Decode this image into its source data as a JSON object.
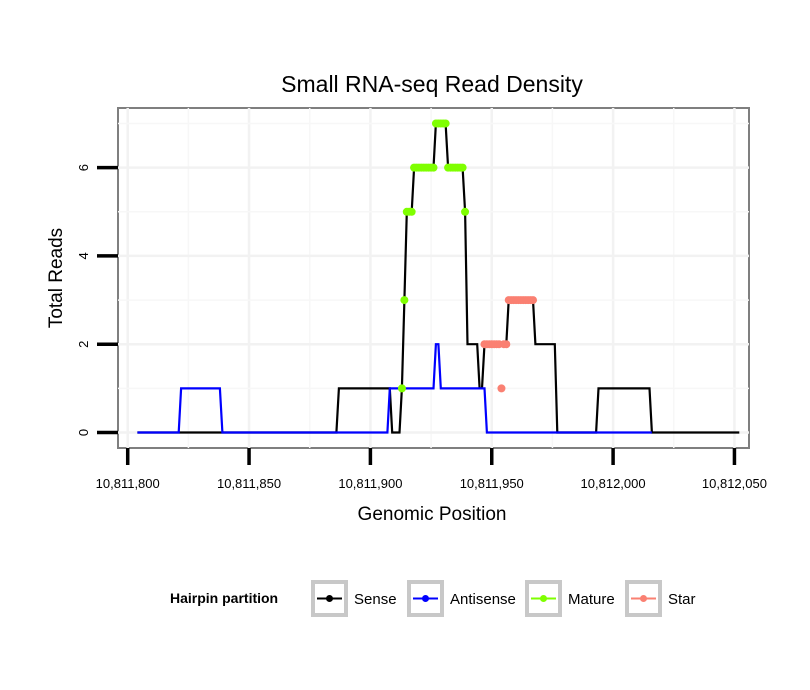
{
  "chart_data": {
    "type": "line",
    "title": "Small RNA-seq Read Density",
    "xlabel": "Genomic Position",
    "ylabel": "Total Reads",
    "xlim": [
      10811796,
      10812056
    ],
    "ylim": [
      -0.35,
      7.35
    ],
    "x_ticks": [
      10811800,
      10811850,
      10811900,
      10811950,
      10812000,
      10812050
    ],
    "x_tick_labels": [
      "10,811,800",
      "10,811,850",
      "10,811,900",
      "10,811,950",
      "10,812,000",
      "10,812,050"
    ],
    "y_ticks": [
      0,
      2,
      4,
      6
    ],
    "y_tick_labels": [
      "0",
      "2",
      "4",
      "6"
    ],
    "grid": true,
    "legend": {
      "title": "Hairpin partition",
      "position": "bottom",
      "entries": [
        {
          "label": "Sense",
          "color": "#000000"
        },
        {
          "label": "Antisense",
          "color": "#0000ff"
        },
        {
          "label": "Mature",
          "color": "#7fff00"
        },
        {
          "label": "Star",
          "color": "#fa8072"
        }
      ]
    },
    "series": [
      {
        "name": "Sense",
        "color": "#000000",
        "kind": "line",
        "x": [
          10811804,
          10811886,
          10811887,
          10811908,
          10811909,
          10811912,
          10811913,
          10811914,
          10811915,
          10811916,
          10811917,
          10811918,
          10811919,
          10811926,
          10811927,
          10811931,
          10811932,
          10811938,
          10811939,
          10811940,
          10811941,
          10811944,
          10811945,
          10811946,
          10811947,
          10811948,
          10811949,
          10811956,
          10811957,
          10811967,
          10811968,
          10811976,
          10811977,
          10811993,
          10811994,
          10812015,
          10812016,
          10812052
        ],
        "y": [
          0,
          0,
          1,
          1,
          0,
          0,
          1,
          3,
          5,
          5,
          5,
          6,
          6,
          6,
          7,
          7,
          6,
          6,
          5,
          2,
          2,
          2,
          1,
          1,
          2,
          2,
          2,
          2,
          3,
          3,
          2,
          2,
          0,
          0,
          1,
          1,
          0,
          0
        ]
      },
      {
        "name": "Antisense",
        "color": "#0000ff",
        "kind": "line",
        "x": [
          10811804,
          10811821,
          10811822,
          10811838,
          10811839,
          10811907,
          10811908,
          10811926,
          10811927,
          10811928,
          10811929,
          10811947,
          10811948,
          10812016
        ],
        "y": [
          0,
          0,
          1,
          1,
          0,
          0,
          1,
          1,
          2,
          2,
          1,
          1,
          0,
          0
        ]
      },
      {
        "name": "Mature",
        "color": "#7fff00",
        "kind": "points",
        "x": [
          10811913,
          10811914,
          10811915,
          10811916,
          10811917,
          10811918,
          10811919,
          10811920,
          10811921,
          10811922,
          10811923,
          10811924,
          10811925,
          10811926,
          10811927,
          10811928,
          10811929,
          10811930,
          10811931,
          10811932,
          10811933,
          10811934,
          10811935,
          10811936,
          10811937,
          10811938,
          10811939
        ],
        "y": [
          1,
          3,
          5,
          5,
          5,
          6,
          6,
          6,
          6,
          6,
          6,
          6,
          6,
          6,
          7,
          7,
          7,
          7,
          7,
          6,
          6,
          6,
          6,
          6,
          6,
          6,
          5
        ]
      },
      {
        "name": "Star",
        "color": "#fa8072",
        "kind": "points",
        "x": [
          10811947,
          10811948,
          10811949,
          10811950,
          10811951,
          10811952,
          10811953,
          10811954,
          10811955,
          10811956,
          10811957,
          10811958,
          10811959,
          10811960,
          10811961,
          10811962,
          10811963,
          10811964,
          10811965,
          10811966,
          10811967
        ],
        "y": [
          2,
          2,
          2,
          2,
          2,
          2,
          2,
          1,
          2,
          2,
          3,
          3,
          3,
          3,
          3,
          3,
          3,
          3,
          3,
          3,
          3
        ]
      }
    ]
  }
}
